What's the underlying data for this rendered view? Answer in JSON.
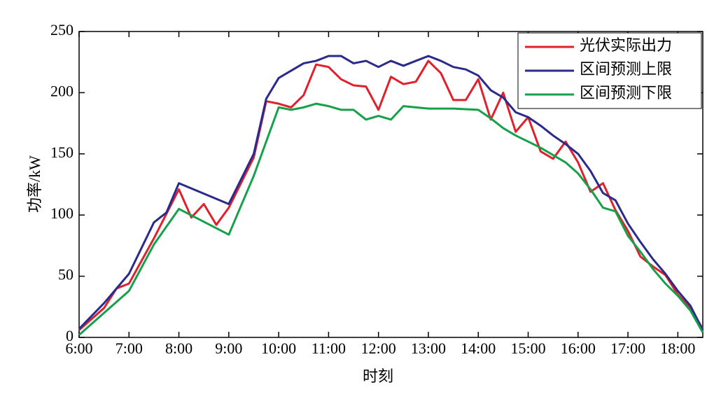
{
  "chart_data": {
    "type": "line",
    "x_label": "时刻",
    "y_label": "功率/kW",
    "xlim": [
      6,
      18.5
    ],
    "ylim": [
      0,
      250
    ],
    "xticks": [
      {
        "value": 6,
        "label": "6:00"
      },
      {
        "value": 7,
        "label": "7:00"
      },
      {
        "value": 8,
        "label": "8:00"
      },
      {
        "value": 9,
        "label": "9:00"
      },
      {
        "value": 10,
        "label": "10:00"
      },
      {
        "value": 11,
        "label": "11:00"
      },
      {
        "value": 12,
        "label": "12:00"
      },
      {
        "value": 13,
        "label": "13:00"
      },
      {
        "value": 14,
        "label": "14:00"
      },
      {
        "value": 15,
        "label": "15:00"
      },
      {
        "value": 16,
        "label": "16:00"
      },
      {
        "value": 17,
        "label": "17:00"
      },
      {
        "value": 18,
        "label": "18:00"
      }
    ],
    "yticks": [
      0,
      50,
      100,
      150,
      200,
      250
    ],
    "legend": "upper right",
    "series": [
      {
        "name": "光伏实际出力",
        "color": "#e0202a",
        "x": [
          6,
          6.5,
          6.75,
          7,
          7.5,
          8,
          8.25,
          8.5,
          8.75,
          9,
          9.5,
          9.75,
          10,
          10.25,
          10.5,
          10.75,
          11,
          11.25,
          11.5,
          11.75,
          12,
          12.25,
          12.5,
          12.75,
          13,
          13.25,
          13.5,
          13.75,
          14,
          14.25,
          14.5,
          14.75,
          15,
          15.25,
          15.5,
          15.75,
          16,
          16.25,
          16.5,
          16.75,
          17,
          17.25,
          17.5,
          17.75,
          18,
          18.25,
          18.5
        ],
        "values": [
          6,
          24,
          40,
          44,
          81,
          121,
          98,
          109,
          92,
          106,
          147,
          193,
          191,
          188,
          198,
          223,
          221,
          211,
          206,
          205,
          186,
          213,
          207,
          209,
          226,
          216,
          194,
          194,
          211,
          178,
          200,
          168,
          180,
          152,
          146,
          160,
          143,
          119,
          126,
          104,
          87,
          66,
          58,
          51,
          35,
          24,
          7
        ]
      },
      {
        "name": "区间预测上限",
        "color": "#2a2a8c",
        "x": [
          6,
          6.5,
          6.75,
          7,
          7.5,
          7.75,
          8,
          9,
          9.5,
          9.75,
          10,
          10.25,
          10.5,
          10.75,
          11,
          11.25,
          11.5,
          11.75,
          12,
          12.25,
          12.5,
          12.75,
          13,
          13.25,
          13.5,
          13.75,
          14,
          14.25,
          14.5,
          14.75,
          15,
          15.25,
          15.5,
          15.75,
          16,
          16.25,
          16.5,
          16.75,
          17,
          17.25,
          17.5,
          17.75,
          18,
          18.25,
          18.5
        ],
        "values": [
          7,
          28,
          40,
          52,
          94,
          102,
          126,
          109,
          150,
          195,
          212,
          218,
          224,
          226,
          230,
          230,
          224,
          226,
          221,
          226,
          222,
          226,
          230,
          226,
          221,
          219,
          214,
          202,
          196,
          184,
          180,
          173,
          165,
          158,
          150,
          136,
          118,
          112,
          93,
          78,
          64,
          52,
          38,
          26,
          6
        ]
      },
      {
        "name": "区间预测下限",
        "color": "#16a04a",
        "x": [
          6,
          6.5,
          7,
          7.5,
          8,
          9,
          9.5,
          10,
          10.25,
          10.5,
          10.75,
          11,
          11.25,
          11.5,
          11.75,
          12,
          12.25,
          12.5,
          12.75,
          13,
          13.5,
          14,
          14.25,
          14.5,
          14.75,
          15,
          15.25,
          15.5,
          15.75,
          16,
          16.25,
          16.5,
          16.75,
          17,
          17.25,
          17.5,
          17.75,
          18,
          18.25,
          18.5
        ],
        "values": [
          2,
          20,
          38,
          76,
          105,
          84,
          132,
          188,
          186,
          188,
          191,
          189,
          186,
          186,
          178,
          181,
          178,
          189,
          188,
          187,
          187,
          186,
          179,
          171,
          165,
          160,
          155,
          149,
          143,
          134,
          121,
          106,
          103,
          83,
          70,
          56,
          44,
          34,
          22,
          4
        ]
      }
    ]
  }
}
